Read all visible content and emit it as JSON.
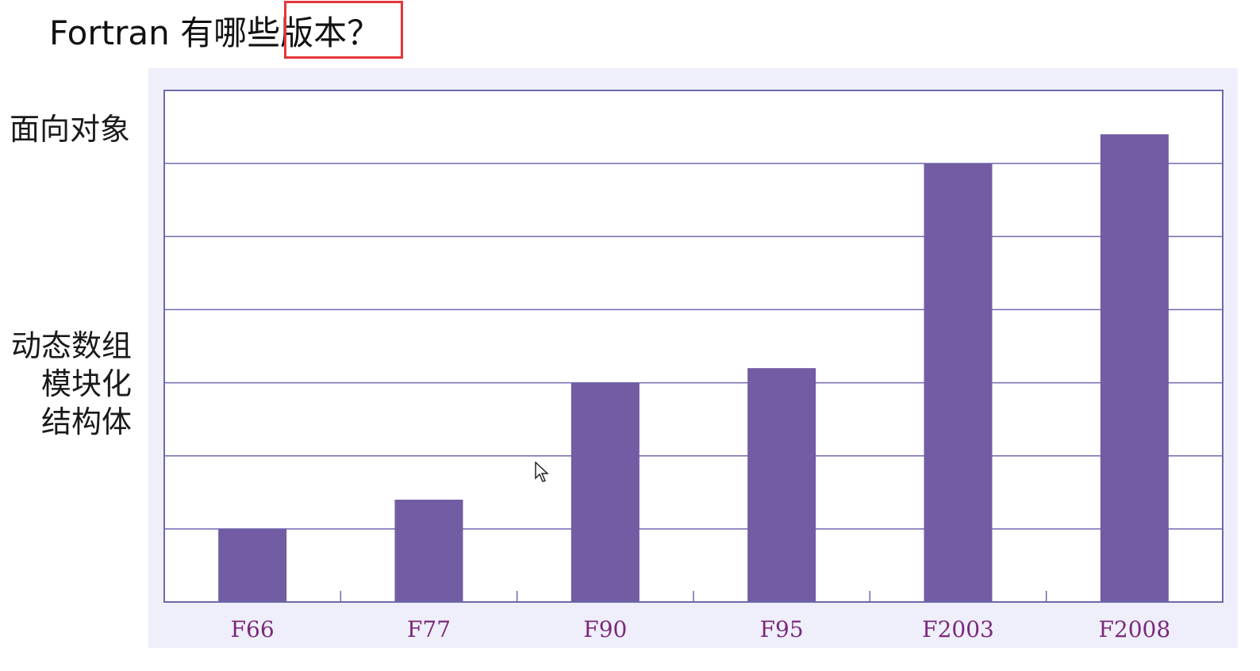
{
  "title": "Fortran 有哪些版本？",
  "colors": {
    "bar": "#725ca3",
    "grid": "#6f6ab0",
    "axis": "#6c6aa8",
    "panel": "#efeffb",
    "tick_label": "#7a2a7a",
    "highlight_box": "#e5363a"
  },
  "chart_data": {
    "type": "bar",
    "title": "",
    "xlabel": "",
    "ylabel": "",
    "categories": [
      "F66",
      "F77",
      "F90",
      "F95",
      "F2003",
      "F2008"
    ],
    "values": [
      1,
      1.4,
      3,
      3.2,
      6,
      6.4
    ],
    "ylim": [
      0,
      7
    ],
    "grid": true,
    "y_annotations": [
      {
        "text": "面向对象",
        "level": 6.5
      },
      {
        "text": "动态数组",
        "level": 3.4
      },
      {
        "text": "模块化",
        "level": 2.9
      },
      {
        "text": "结构体",
        "level": 2.4
      }
    ]
  }
}
